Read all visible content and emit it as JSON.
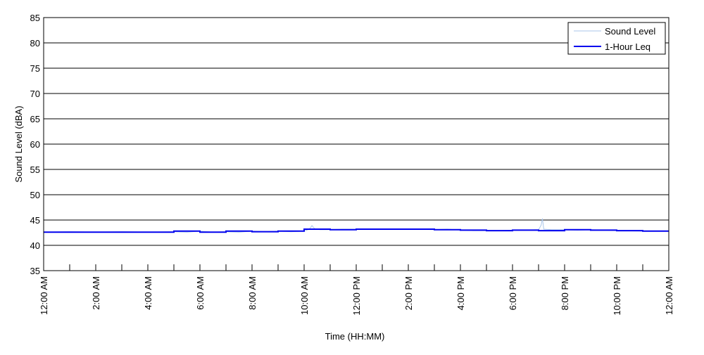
{
  "chart_data": {
    "type": "line",
    "title": "",
    "xlabel": "Time (HH:MM)",
    "ylabel": "Sound Level (dBA)",
    "xlim": [
      0,
      24
    ],
    "ylim": [
      35,
      85
    ],
    "y_ticks": [
      35,
      40,
      45,
      50,
      55,
      60,
      65,
      70,
      75,
      80,
      85
    ],
    "x_ticks": [
      0,
      1,
      2,
      3,
      4,
      5,
      6,
      7,
      8,
      9,
      10,
      11,
      12,
      13,
      14,
      15,
      16,
      17,
      18,
      19,
      20,
      21,
      22,
      23,
      24
    ],
    "x_tick_labels": [
      {
        "x": 0,
        "label": "12:00 AM"
      },
      {
        "x": 2,
        "label": "2:00 AM"
      },
      {
        "x": 4,
        "label": "4:00 AM"
      },
      {
        "x": 6,
        "label": "6:00 AM"
      },
      {
        "x": 8,
        "label": "8:00 AM"
      },
      {
        "x": 10,
        "label": "10:00 AM"
      },
      {
        "x": 12,
        "label": "12:00 PM"
      },
      {
        "x": 14,
        "label": "2:00 PM"
      },
      {
        "x": 16,
        "label": "4:00 PM"
      },
      {
        "x": 18,
        "label": "6:00 PM"
      },
      {
        "x": 20,
        "label": "8:00 PM"
      },
      {
        "x": 22,
        "label": "10:00 PM"
      },
      {
        "x": 24,
        "label": "12:00 AM"
      }
    ],
    "grid": "horizontal",
    "legend_position": "top-right",
    "series": [
      {
        "name": "Sound Level",
        "color": "#a9c6ea",
        "x": [
          0,
          1,
          2,
          3,
          4,
          5,
          5.5,
          6,
          6.5,
          7,
          7.5,
          8,
          8.5,
          9,
          9.5,
          10,
          10.2,
          10.3,
          10.4,
          10.6,
          11,
          11.5,
          12,
          13,
          14,
          15,
          15.5,
          16,
          16.5,
          17,
          17.5,
          18,
          18.5,
          19,
          19.1,
          19.15,
          19.2,
          19.5,
          20,
          20.5,
          21,
          21.5,
          22,
          23,
          24
        ],
        "y": [
          42.6,
          42.7,
          42.6,
          42.7,
          42.6,
          42.7,
          42.6,
          42.8,
          42.6,
          42.7,
          42.6,
          42.8,
          42.7,
          42.8,
          42.7,
          42.8,
          43.2,
          43.9,
          43.3,
          43.1,
          43.1,
          43.2,
          43.2,
          43.2,
          43.2,
          43.1,
          43.2,
          43.0,
          42.9,
          42.9,
          42.9,
          43.0,
          43.0,
          43.1,
          44.0,
          45.3,
          43.2,
          43.1,
          43.1,
          43.0,
          43.1,
          43.0,
          42.9,
          42.8,
          42.8
        ]
      },
      {
        "name": "1-Hour Leq",
        "color": "#0000ee",
        "x": [
          0,
          1,
          1,
          2,
          2,
          3,
          3,
          4,
          4,
          5,
          5,
          6,
          6,
          7,
          7,
          8,
          8,
          9,
          9,
          10,
          10,
          11,
          11,
          12,
          12,
          13,
          13,
          14,
          14,
          15,
          15,
          16,
          16,
          17,
          17,
          18,
          18,
          19,
          19,
          20,
          20,
          21,
          21,
          22,
          22,
          23,
          23,
          24
        ],
        "y": [
          42.6,
          42.6,
          42.6,
          42.6,
          42.6,
          42.6,
          42.6,
          42.6,
          42.6,
          42.6,
          42.8,
          42.8,
          42.6,
          42.6,
          42.8,
          42.8,
          42.7,
          42.7,
          42.8,
          42.8,
          43.2,
          43.2,
          43.1,
          43.1,
          43.2,
          43.2,
          43.2,
          43.2,
          43.2,
          43.2,
          43.1,
          43.1,
          43.0,
          43.0,
          42.9,
          42.9,
          43.0,
          43.0,
          42.9,
          42.9,
          43.1,
          43.1,
          43.0,
          43.0,
          42.9,
          42.9,
          42.8,
          42.8
        ]
      }
    ]
  }
}
